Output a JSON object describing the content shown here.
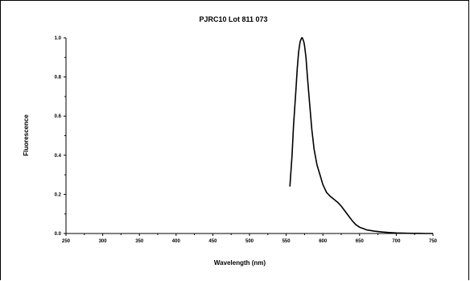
{
  "chart_data": {
    "type": "line",
    "title": "PJRC10  Lot 811 073",
    "xlabel": "Wavelength (nm)",
    "ylabel": "Fluorescence",
    "xlim": [
      250,
      750
    ],
    "ylim": [
      0,
      1.0
    ],
    "x_ticks": [
      "250",
      "300",
      "350",
      "400",
      "450",
      "500",
      "550",
      "600",
      "650",
      "700",
      "750"
    ],
    "y_ticks": [
      "0.0",
      "0.2",
      "0.4",
      "0.6",
      "0.8",
      "1.0"
    ],
    "grid": false,
    "series": [
      {
        "x": [
          555,
          558,
          560,
          563,
          565,
          567,
          569,
          571,
          572,
          573,
          574,
          575,
          577,
          579,
          582,
          585,
          588,
          592,
          596,
          600,
          605,
          610,
          615,
          620,
          625,
          630,
          635,
          640,
          645,
          650,
          655,
          660,
          670,
          680,
          690,
          700,
          710,
          720,
          730,
          740,
          750
        ],
        "y": [
          0.24,
          0.4,
          0.55,
          0.72,
          0.84,
          0.93,
          0.98,
          1.0,
          1.0,
          0.99,
          0.98,
          0.96,
          0.9,
          0.8,
          0.66,
          0.53,
          0.43,
          0.35,
          0.3,
          0.25,
          0.21,
          0.19,
          0.175,
          0.16,
          0.14,
          0.115,
          0.09,
          0.065,
          0.045,
          0.032,
          0.025,
          0.018,
          0.012,
          0.008,
          0.005,
          0.003,
          0.002,
          0.001,
          0.001,
          0.0,
          0.0
        ]
      }
    ]
  }
}
